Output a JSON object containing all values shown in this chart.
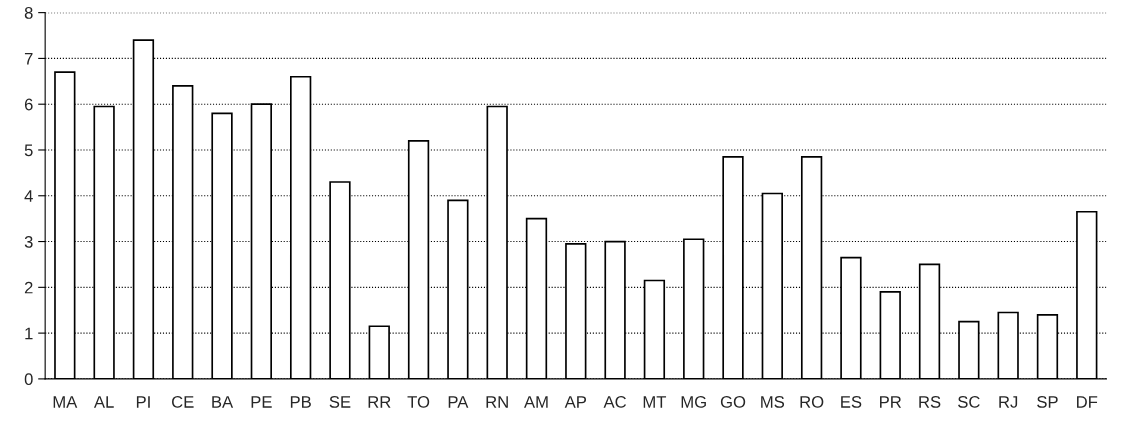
{
  "chart_data": {
    "type": "bar",
    "categories": [
      "MA",
      "AL",
      "PI",
      "CE",
      "BA",
      "PE",
      "PB",
      "SE",
      "RR",
      "TO",
      "PA",
      "RN",
      "AM",
      "AP",
      "AC",
      "MT",
      "MG",
      "GO",
      "MS",
      "RO",
      "ES",
      "PR",
      "RS",
      "SC",
      "RJ",
      "SP",
      "DF"
    ],
    "values": [
      6.7,
      5.95,
      7.4,
      6.4,
      5.8,
      6.0,
      6.6,
      4.3,
      1.15,
      5.2,
      3.9,
      5.95,
      3.5,
      2.95,
      3.0,
      2.15,
      3.05,
      4.85,
      4.05,
      4.85,
      2.65,
      1.9,
      2.5,
      1.25,
      1.45,
      1.4,
      3.65
    ],
    "color": "#ffffff",
    "ylim": [
      0,
      8
    ],
    "yticks": [
      0,
      1,
      2,
      3,
      4,
      5,
      6,
      7,
      8
    ],
    "grid": "y",
    "legend": false
  }
}
